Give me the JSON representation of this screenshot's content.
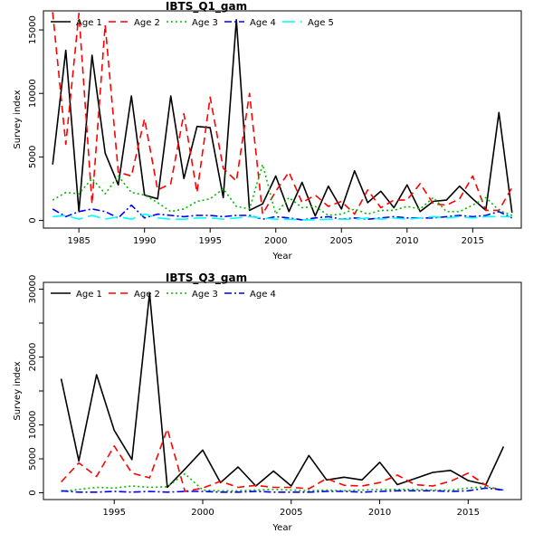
{
  "chart_data": [
    {
      "type": "line",
      "title": "IBTS_Q1_gam",
      "xlabel": "Year",
      "ylabel": "Survey index",
      "xlim": [
        1982.3,
        2018.7
      ],
      "ylim": [
        -600,
        16500
      ],
      "xticks": [
        1985,
        1990,
        1995,
        2000,
        2005,
        2010,
        2015
      ],
      "xtick_labels": [
        "1985",
        "1990",
        "1995",
        "2000",
        "2005",
        "2010",
        "2015"
      ],
      "yticks": [
        0,
        5000,
        10000,
        15000
      ],
      "ytick_labels": [
        "0",
        "5000",
        "10000",
        "15000"
      ],
      "legend_position": "top",
      "x": [
        1983,
        1984,
        1985,
        1986,
        1987,
        1988,
        1989,
        1990,
        1991,
        1992,
        1993,
        1994,
        1995,
        1996,
        1997,
        1998,
        1999,
        2000,
        2001,
        2002,
        2003,
        2004,
        2005,
        2006,
        2007,
        2008,
        2009,
        2010,
        2011,
        2012,
        2013,
        2014,
        2015,
        2016,
        2017,
        2018
      ],
      "series": [
        {
          "name": "Age 1",
          "color": "#000000",
          "dash": "solid",
          "values": [
            4400,
            13400,
            700,
            13000,
            5300,
            2800,
            9800,
            2000,
            1700,
            9800,
            3300,
            7400,
            7300,
            1800,
            15800,
            800,
            1300,
            3500,
            700,
            3000,
            350,
            2700,
            900,
            3900,
            1400,
            2300,
            1000,
            2800,
            700,
            1500,
            1600,
            2700,
            1700,
            800,
            8500,
            600
          ]
        },
        {
          "name": "Age 2",
          "color": "#ff0000",
          "dash": "8,5",
          "values": [
            16400,
            6000,
            16300,
            1300,
            15400,
            3800,
            3500,
            8000,
            2400,
            2900,
            8400,
            2200,
            9700,
            4100,
            3100,
            10000,
            500,
            2300,
            3800,
            1400,
            2000,
            1100,
            1500,
            500,
            2400,
            1000,
            1600,
            1600,
            2900,
            1300,
            1200,
            1700,
            3500,
            800,
            800,
            2600
          ]
        },
        {
          "name": "Age 3",
          "color": "#00bb00",
          "dash": "2,3",
          "values": [
            1600,
            2200,
            2100,
            3300,
            2100,
            3500,
            2200,
            2000,
            1400,
            700,
            900,
            1500,
            1700,
            2500,
            1100,
            900,
            4400,
            500,
            1800,
            1000,
            1100,
            400,
            500,
            900,
            500,
            800,
            800,
            1100,
            900,
            1800,
            700,
            700,
            1200,
            1800,
            800,
            400
          ]
        },
        {
          "name": "Age 4",
          "color": "#0000ee",
          "dash": "8,3,2,3",
          "values": [
            900,
            300,
            700,
            900,
            700,
            200,
            1200,
            200,
            500,
            400,
            300,
            400,
            400,
            300,
            400,
            400,
            100,
            300,
            200,
            50,
            200,
            300,
            100,
            200,
            100,
            200,
            300,
            200,
            200,
            200,
            300,
            400,
            300,
            400,
            700,
            200
          ]
        },
        {
          "name": "Age 5",
          "color": "#00ffff",
          "dash": "14,6",
          "values": [
            300,
            400,
            100,
            400,
            100,
            300,
            100,
            500,
            200,
            100,
            100,
            200,
            200,
            100,
            200,
            300,
            200,
            100,
            100,
            50,
            50,
            100,
            100,
            100,
            200,
            100,
            200,
            100,
            200,
            300,
            200,
            300,
            200,
            300,
            300,
            300
          ]
        }
      ]
    },
    {
      "type": "line",
      "title": "IBTS_Q3_gam",
      "xlabel": "Year",
      "ylabel": "Survey index",
      "xlim": [
        1991.0,
        2018.0
      ],
      "ylim": [
        -1000,
        31000
      ],
      "xticks": [
        1995,
        2000,
        2005,
        2010,
        2015
      ],
      "xtick_labels": [
        "1995",
        "2000",
        "2005",
        "2010",
        "2015"
      ],
      "yticks": [
        0,
        5000,
        10000,
        15000,
        20000,
        25000,
        30000
      ],
      "ytick_labels": [
        "0",
        "5000",
        "10000",
        "",
        "20000",
        "",
        "30000"
      ],
      "legend_position": "top",
      "x": [
        1992,
        1993,
        1994,
        1995,
        1996,
        1997,
        1998,
        1999,
        2000,
        2001,
        2002,
        2003,
        2004,
        2005,
        2006,
        2007,
        2008,
        2009,
        2010,
        2011,
        2012,
        2013,
        2014,
        2015,
        2016,
        2017
      ],
      "series": [
        {
          "name": "Age 1",
          "color": "#000000",
          "dash": "solid",
          "values": [
            16800,
            4700,
            17400,
            9200,
            4900,
            29400,
            800,
            3500,
            6300,
            1500,
            3800,
            1000,
            3200,
            1000,
            5500,
            1900,
            2300,
            1900,
            4500,
            1200,
            2100,
            3000,
            3300,
            1800,
            1200,
            6800
          ]
        },
        {
          "name": "Age 2",
          "color": "#ff0000",
          "dash": "8,5",
          "values": [
            1600,
            4400,
            2400,
            6900,
            2900,
            2200,
            9400,
            200,
            700,
            1700,
            800,
            1100,
            800,
            800,
            600,
            2100,
            1100,
            1000,
            1500,
            2600,
            1200,
            1000,
            1700,
            2900,
            1100,
            200
          ]
        },
        {
          "name": "Age 3",
          "color": "#00bb00",
          "dash": "2,3",
          "values": [
            200,
            500,
            800,
            700,
            1000,
            800,
            900,
            2800,
            400,
            300,
            300,
            400,
            500,
            400,
            300,
            400,
            300,
            400,
            500,
            500,
            500,
            400,
            400,
            700,
            900,
            400
          ]
        },
        {
          "name": "Age 4",
          "color": "#0000ee",
          "dash": "8,3,2,3",
          "values": [
            300,
            100,
            100,
            200,
            100,
            200,
            100,
            200,
            200,
            100,
            100,
            200,
            100,
            100,
            100,
            200,
            200,
            100,
            200,
            300,
            300,
            300,
            200,
            300,
            700,
            400
          ]
        }
      ]
    }
  ]
}
